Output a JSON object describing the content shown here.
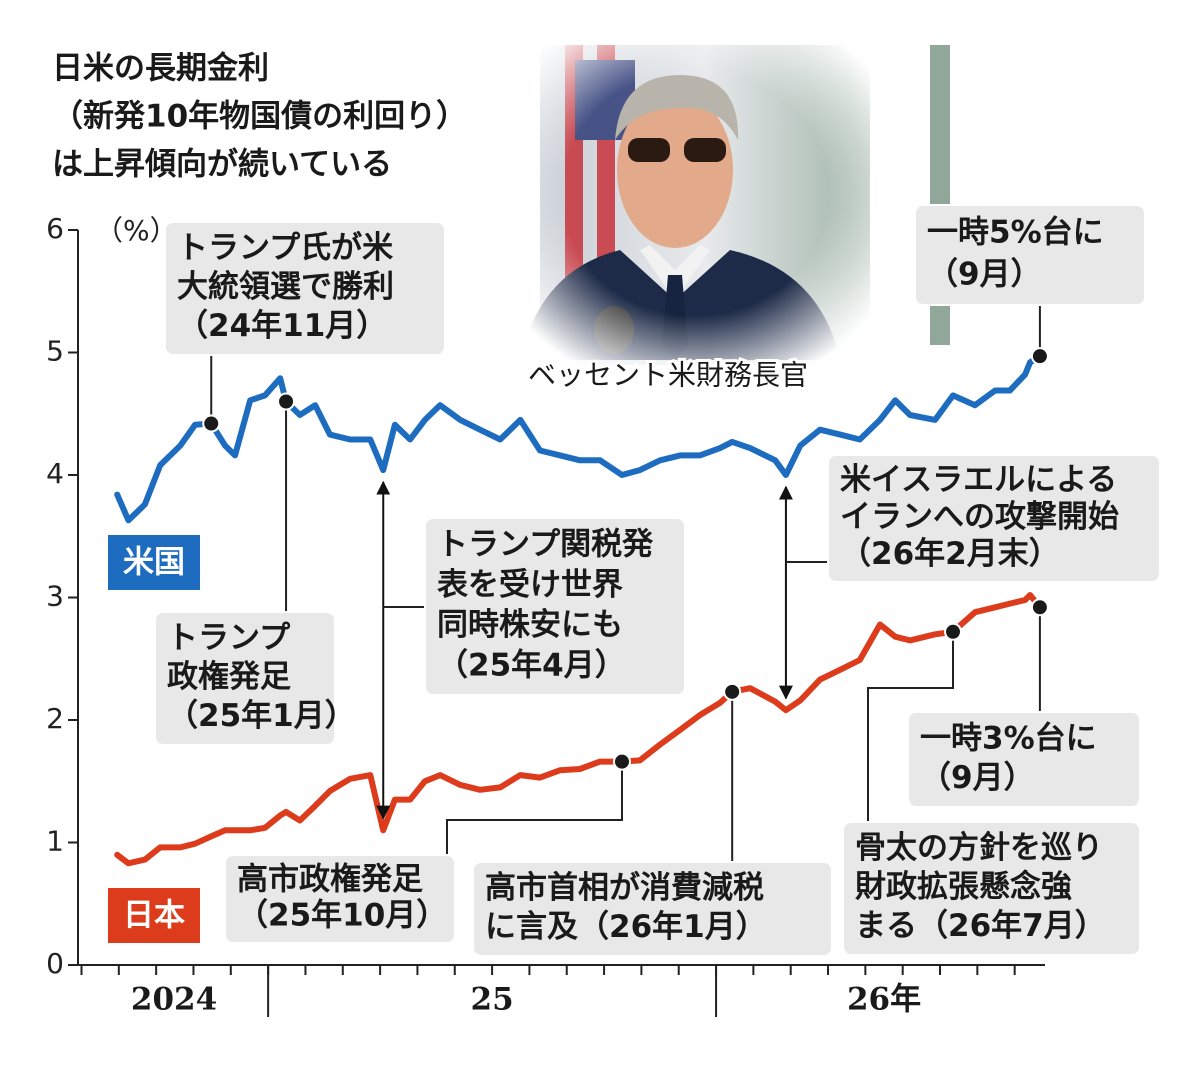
{
  "chart_data": {
    "type": "line",
    "title": [
      "日米の長期金利",
      "（新発10年物国債の利回り）",
      "は上昇傾向が続いている"
    ],
    "unit": "（%）",
    "photo_caption": "ベッセント米財務長官",
    "x": [
      2024.663,
      2024.688,
      2024.725,
      2024.759,
      2024.804,
      2024.837,
      2024.873,
      2024.904,
      2024.926,
      2024.96,
      2024.993,
      2025.027,
      2025.04,
      2025.071,
      2025.105,
      2025.138,
      2025.183,
      2025.228,
      2025.257,
      2025.283,
      2025.317,
      2025.35,
      2025.384,
      2025.429,
      2025.473,
      2025.518,
      2025.563,
      2025.607,
      2025.652,
      2025.696,
      2025.741,
      2025.79,
      2025.83,
      2025.875,
      2025.92,
      2025.964,
      2026.009,
      2026.036,
      2026.076,
      2026.132,
      2026.156,
      2026.188,
      2026.232,
      2026.277,
      2026.321,
      2026.366,
      2026.4,
      2026.433,
      2026.489,
      2026.529,
      2026.578,
      2026.623,
      2026.656,
      2026.69,
      2026.701,
      2026.723
    ],
    "xlim": [
      2024.58,
      2026.75
    ],
    "xticks": [
      2025,
      2026
    ],
    "year_labels": [
      "2024",
      "25",
      "26年"
    ],
    "ylim": [
      0,
      6
    ],
    "yticks": [
      0,
      1,
      2,
      3,
      4,
      5,
      6
    ],
    "series": [
      {
        "name": "米国",
        "color": "#1d6cc0",
        "values": [
          3.84,
          3.63,
          3.76,
          4.08,
          4.24,
          4.41,
          4.42,
          4.24,
          4.16,
          4.61,
          4.65,
          4.79,
          4.6,
          4.49,
          4.57,
          4.33,
          4.29,
          4.29,
          4.04,
          4.41,
          4.29,
          4.45,
          4.57,
          4.45,
          4.37,
          4.29,
          4.45,
          4.2,
          4.16,
          4.12,
          4.12,
          4.0,
          4.04,
          4.12,
          4.16,
          4.16,
          4.22,
          4.27,
          4.22,
          4.12,
          4.0,
          4.24,
          4.37,
          4.33,
          4.29,
          4.45,
          4.61,
          4.49,
          4.45,
          4.65,
          4.57,
          4.69,
          4.69,
          4.82,
          4.92,
          4.97
        ]
      },
      {
        "name": "日本",
        "color": "#dd3c1c",
        "values": [
          0.9,
          0.83,
          0.86,
          0.96,
          0.96,
          0.99,
          1.05,
          1.1,
          1.1,
          1.1,
          1.12,
          1.22,
          1.25,
          1.18,
          1.3,
          1.42,
          1.52,
          1.55,
          1.1,
          1.35,
          1.35,
          1.5,
          1.55,
          1.47,
          1.43,
          1.45,
          1.55,
          1.53,
          1.59,
          1.6,
          1.66,
          1.66,
          1.67,
          1.8,
          1.92,
          2.04,
          2.14,
          2.23,
          2.26,
          2.15,
          2.08,
          2.16,
          2.33,
          2.41,
          2.49,
          2.78,
          2.68,
          2.65,
          2.7,
          2.72,
          2.88,
          2.92,
          2.95,
          2.98,
          3.02,
          2.92
        ]
      }
    ],
    "annotations": [
      [
        "トランプ氏が米",
        "大統領選で勝利",
        "（24年11月）"
      ],
      [
        "トランプ",
        "政権発足",
        "（25年1月）"
      ],
      [
        "トランプ関税発",
        "表を受け世界",
        "同時株安にも",
        "（25年4月）"
      ],
      [
        "米イスラエルによる",
        "イランへの攻撃開始",
        "（26年2月末）"
      ],
      [
        "一時5%台に",
        "（9月）"
      ],
      [
        "一時3%台に",
        "（9月）"
      ],
      [
        "骨太の方針を巡り",
        "財政拡張懸念強",
        "まる（26年7月）"
      ],
      [
        "高市政権発足",
        "（25年10月）"
      ],
      [
        "高市首相が消費減税",
        "に言及（26年1月）"
      ]
    ]
  }
}
